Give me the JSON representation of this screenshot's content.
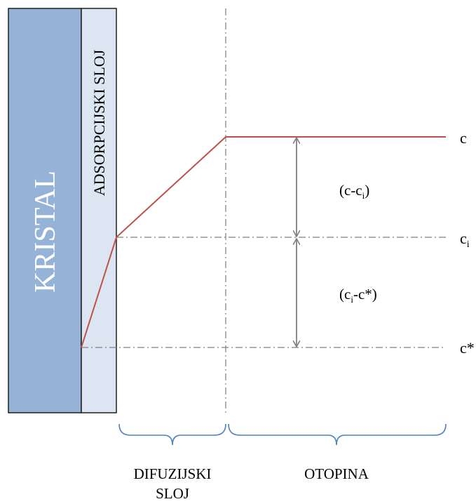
{
  "crystal_label": "KRISTAL",
  "adsorption_label": "ADSORPCIJSKI SLOJ",
  "levels": {
    "c": "c",
    "ci_main": "c",
    "ci_sub": "i",
    "cstar": "c*"
  },
  "differences": {
    "upper": {
      "open": "(c-c",
      "sub": "i",
      "close": ")"
    },
    "lower": {
      "open": "(c",
      "sub": "i",
      "close": "-c*)"
    }
  },
  "regions": {
    "diffusion_line1": "DIFUZIJSKI",
    "diffusion_line2": "SLOJ",
    "solution": "OTOPINA"
  },
  "colors": {
    "crystal_fill": "#95b3d7",
    "adsorption_fill": "#dce6f2",
    "profile_line": "#c0504d",
    "brace": "#4f81bd",
    "dashdot": "#7f7f7f",
    "arrow": "#7f7f7f"
  }
}
